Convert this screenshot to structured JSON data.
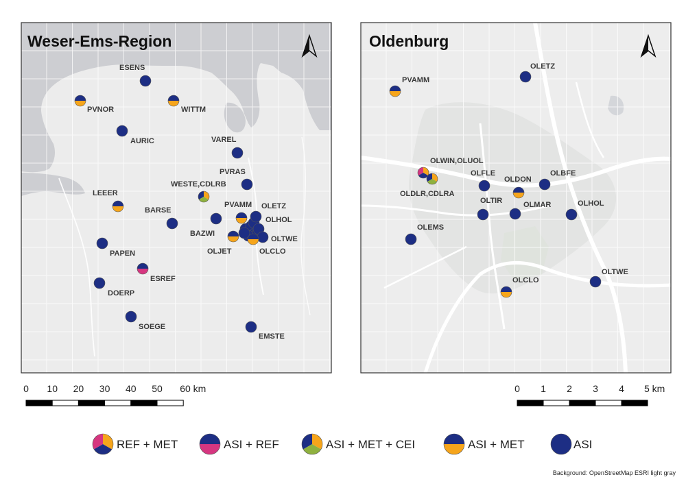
{
  "colors": {
    "ASI": "#1d2e84",
    "MET": "#f6a51b",
    "REF": "#d63680",
    "CEI": "#8fb13f",
    "water": "#cdced2",
    "land": "#ececec"
  },
  "left_map": {
    "title": "Weser-Ems-Region",
    "north_icon": "north-arrow-icon",
    "scale_labels": [
      "0",
      "10",
      "20",
      "30",
      "40",
      "50",
      "60 km"
    ],
    "stations": [
      {
        "id": "esens",
        "label": "ESENS",
        "type": "ASI"
      },
      {
        "id": "pvnor",
        "label": "PVNOR",
        "type": "ASI+MET"
      },
      {
        "id": "wittm",
        "label": "WITTM",
        "type": "ASI+MET"
      },
      {
        "id": "auric",
        "label": "AURIC",
        "type": "ASI"
      },
      {
        "id": "varel",
        "label": "VAREL",
        "type": "ASI"
      },
      {
        "id": "pvras",
        "label": "PVRAS",
        "type": "ASI"
      },
      {
        "id": "weste",
        "label": "WESTE,CDLRB",
        "type": "ASI+MET+CEI"
      },
      {
        "id": "leeer",
        "label": "LEEER",
        "type": "ASI+MET"
      },
      {
        "id": "barse",
        "label": "BARSE",
        "type": "ASI"
      },
      {
        "id": "pvamm",
        "label": "PVAMM",
        "type": "ASI+MET"
      },
      {
        "id": "oletz",
        "label": "OLETZ",
        "type": "ASI"
      },
      {
        "id": "olhol",
        "label": "OLHOL",
        "type": "ASI"
      },
      {
        "id": "bazwi",
        "label": "BAZWI",
        "type": "ASI"
      },
      {
        "id": "oltwe",
        "label": "OLTWE",
        "type": "ASI"
      },
      {
        "id": "oljet",
        "label": "OLJET",
        "type": "ASI+MET"
      },
      {
        "id": "olclo",
        "label": "OLCLO",
        "type": "ASI+MET"
      },
      {
        "id": "papen",
        "label": "PAPEN",
        "type": "ASI"
      },
      {
        "id": "esref",
        "label": "ESREF",
        "type": "ASI+REF"
      },
      {
        "id": "doerp",
        "label": "DOERP",
        "type": "ASI"
      },
      {
        "id": "soege",
        "label": "SOEGE",
        "type": "ASI"
      },
      {
        "id": "emste",
        "label": "EMSTE",
        "type": "ASI"
      }
    ]
  },
  "right_map": {
    "title": "Oldenburg",
    "north_icon": "north-arrow-icon",
    "scale_labels": [
      "0",
      "1",
      "2",
      "3",
      "4",
      "5 km"
    ],
    "stations": [
      {
        "id": "oletz",
        "label": "OLETZ",
        "type": "ASI"
      },
      {
        "id": "pvamm",
        "label": "PVAMM",
        "type": "ASI+MET"
      },
      {
        "id": "olwin",
        "label": "OLWIN,OLUOL",
        "type": "REF+MET"
      },
      {
        "id": "oldlr",
        "label": "OLDLR,CDLRA",
        "type": "ASI+MET+CEI"
      },
      {
        "id": "olfle",
        "label": "OLFLE",
        "type": "ASI"
      },
      {
        "id": "oldon",
        "label": "OLDON",
        "type": "ASI+MET"
      },
      {
        "id": "olbfe",
        "label": "OLBFE",
        "type": "ASI"
      },
      {
        "id": "oltir",
        "label": "OLTIR",
        "type": "ASI"
      },
      {
        "id": "olmar",
        "label": "OLMAR",
        "type": "ASI"
      },
      {
        "id": "olhol",
        "label": "OLHOL",
        "type": "ASI"
      },
      {
        "id": "olems",
        "label": "OLEMS",
        "type": "ASI"
      },
      {
        "id": "oltwe",
        "label": "OLTWE",
        "type": "ASI"
      },
      {
        "id": "olclo",
        "label": "OLCLO",
        "type": "ASI+MET"
      }
    ]
  },
  "legend": [
    {
      "type": "REF+MET",
      "label": "REF + MET"
    },
    {
      "type": "ASI+REF",
      "label": "ASI + REF"
    },
    {
      "type": "ASI+MET+CEI",
      "label": "ASI + MET + CEI"
    },
    {
      "type": "ASI+MET",
      "label": "ASI + MET"
    },
    {
      "type": "ASI",
      "label": "ASI"
    }
  ],
  "credit": "Background: OpenStreetMap ESRI light gray"
}
